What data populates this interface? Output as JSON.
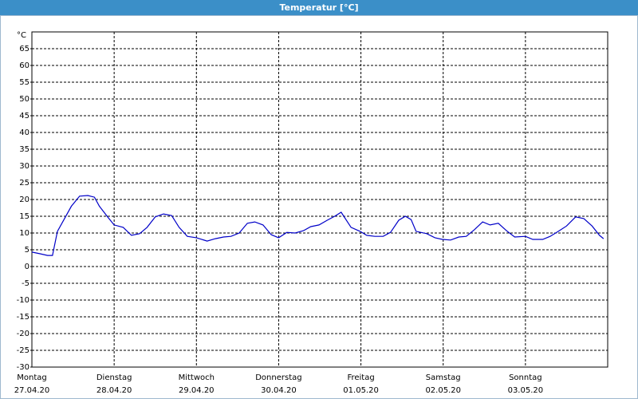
{
  "chart_data": {
    "type": "line",
    "title": "Temperatur [°C]",
    "ylabel": "°C",
    "x": [
      0,
      0.1,
      0.19,
      0.25,
      0.31,
      0.39,
      0.48,
      0.58,
      0.68,
      0.76,
      0.82,
      0.92,
      1.0,
      1.11,
      1.21,
      1.31,
      1.4,
      1.5,
      1.6,
      1.7,
      1.79,
      1.89,
      2.0,
      2.13,
      2.23,
      2.33,
      2.42,
      2.52,
      2.62,
      2.71,
      2.81,
      2.91,
      3.0,
      3.1,
      3.2,
      3.3,
      3.39,
      3.49,
      3.59,
      3.68,
      3.76,
      3.88,
      3.99,
      4.07,
      4.17,
      4.27,
      4.36,
      4.46,
      4.54,
      4.61,
      4.67,
      4.8,
      4.9,
      4.99,
      5.09,
      5.19,
      5.28,
      5.38,
      5.48,
      5.57,
      5.67,
      5.77,
      5.87,
      6.0,
      6.09,
      6.21,
      6.3,
      6.4,
      6.5,
      6.61,
      6.71,
      6.81,
      6.9,
      6.95
    ],
    "series": [
      {
        "name": "Temperatur",
        "color": "#0000c8",
        "values": [
          4.3,
          3.8,
          3.3,
          3.3,
          10.5,
          14,
          18,
          21,
          21.2,
          20.7,
          18,
          14.8,
          12.4,
          11.7,
          9.3,
          9.8,
          11.7,
          14.8,
          15.7,
          15.2,
          11.7,
          9,
          8.6,
          7.6,
          8.3,
          8.8,
          9,
          10,
          12.9,
          13.3,
          12.4,
          9.5,
          8.6,
          10.2,
          10,
          10.7,
          11.9,
          12.4,
          13.8,
          15,
          16.2,
          11.7,
          10.5,
          9.3,
          9,
          9,
          10.2,
          13.8,
          15,
          14,
          10.5,
          9.8,
          8.6,
          8.1,
          7.9,
          8.8,
          9,
          11,
          13.3,
          12.4,
          12.9,
          10.7,
          8.8,
          9,
          8.1,
          8.1,
          9,
          10.5,
          12.1,
          14.8,
          14.3,
          12.1,
          9.3,
          8.3
        ]
      }
    ],
    "xlim": [
      0,
      7
    ],
    "xticks": [
      {
        "value": 0,
        "label": "Montag",
        "date": "27.04.20"
      },
      {
        "value": 1,
        "label": "Dienstag",
        "date": "28.04.20"
      },
      {
        "value": 2,
        "label": "Mittwoch",
        "date": "29.04.20"
      },
      {
        "value": 3,
        "label": "Donnerstag",
        "date": "30.04.20"
      },
      {
        "value": 4,
        "label": "Freitag",
        "date": "01.05.20"
      },
      {
        "value": 5,
        "label": "Samstag",
        "date": "02.05.20"
      },
      {
        "value": 6,
        "label": "Sonntag",
        "date": "03.05.20"
      }
    ],
    "ylim": [
      -30,
      70
    ],
    "yticks": [
      -30,
      -25,
      -20,
      -15,
      -10,
      -5,
      0,
      5,
      10,
      15,
      20,
      25,
      30,
      35,
      40,
      45,
      50,
      55,
      60,
      65
    ],
    "grid": true
  }
}
